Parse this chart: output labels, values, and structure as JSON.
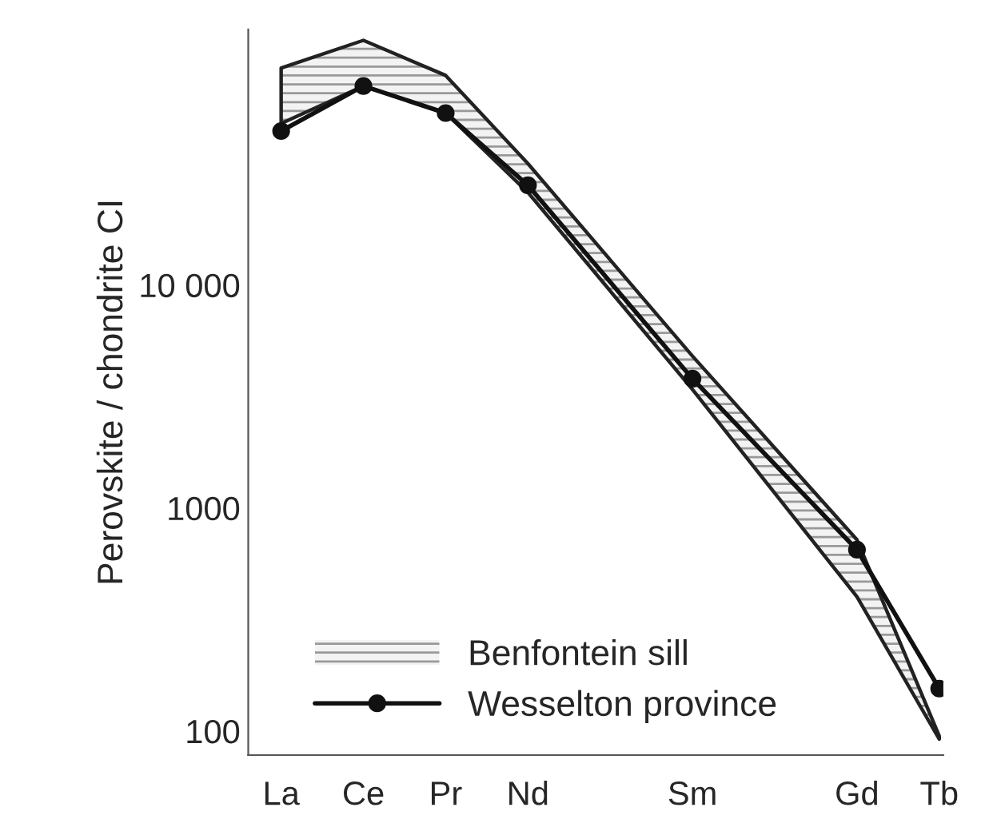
{
  "chart_data": {
    "type": "line",
    "ylabel": "Perovskite / chondrite CI",
    "categories": [
      "La",
      "Ce",
      "Pr",
      "Nd",
      null,
      "Sm",
      null,
      "Gd",
      "Tb"
    ],
    "series": [
      {
        "name": "Benfontein sill",
        "color": "#222222",
        "values": [
          null,
          null,
          null,
          null,
          null,
          null,
          null,
          null,
          null
        ],
        "upper": [
          94000,
          125000,
          87000,
          35000,
          null,
          4800,
          null,
          720,
          95
        ],
        "lower": [
          53000,
          78000,
          59000,
          26000,
          null,
          3400,
          null,
          400,
          92
        ]
      },
      {
        "name": "Wesselton province",
        "color": "#111111",
        "marker": "circle",
        "values": [
          49000,
          78000,
          59000,
          28000,
          null,
          3800,
          null,
          650,
          155
        ]
      }
    ],
    "log": true,
    "ylim": [
      78,
      140000
    ],
    "yticks": [
      100,
      1000,
      {
        "value": 10000,
        "label": "10 000"
      }
    ],
    "grid": false,
    "legend": "bottom left"
  }
}
